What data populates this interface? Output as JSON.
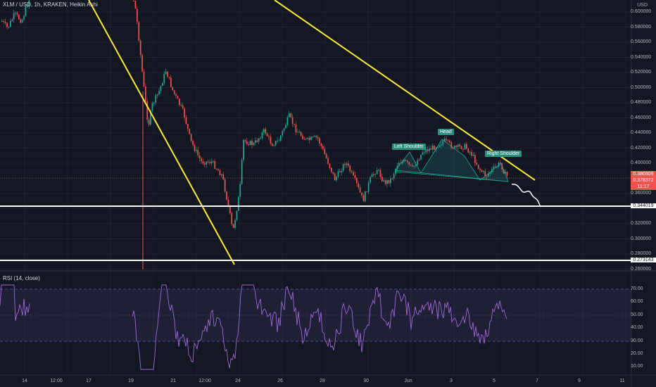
{
  "header": {
    "title": "XLM / USD, 1h, KRAKEN, Heikin Ashi",
    "currency": "USD"
  },
  "price_axis": [
    "0.600000",
    "0.580000",
    "0.560000",
    "0.540000",
    "0.520000",
    "0.500000",
    "0.480000",
    "0.460000",
    "0.440000",
    "0.420000",
    "0.400000",
    "0.380000",
    "0.360000",
    "0.340000",
    "0.320000",
    "0.300000",
    "0.280000",
    "0.260000"
  ],
  "price_tags": {
    "current": "0.380309",
    "current2": "0.378372",
    "countdown": "11:17",
    "support1": "0.344019",
    "support2": "0.273143"
  },
  "rsi": {
    "label": "RSI (14, close)",
    "axis": [
      "70.00",
      "60.00",
      "50.00",
      "40.00",
      "30.00",
      "20.00",
      "10.00"
    ]
  },
  "annotations": {
    "left_shoulder": "Left Shoulder",
    "head": "Head",
    "right_shoulder": "Right Shoulder"
  },
  "time_axis": [
    "14",
    "12:00",
    "17",
    "19",
    "21",
    "12:00",
    "24",
    "26",
    "28",
    "30",
    "Jun",
    "3",
    "5",
    "7",
    "9",
    "11"
  ],
  "colors": {
    "background": "#131722",
    "up": "#26a69a",
    "down": "#ef5350",
    "trendline": "#ffeb3b",
    "rsi": "#7e57c2"
  }
}
